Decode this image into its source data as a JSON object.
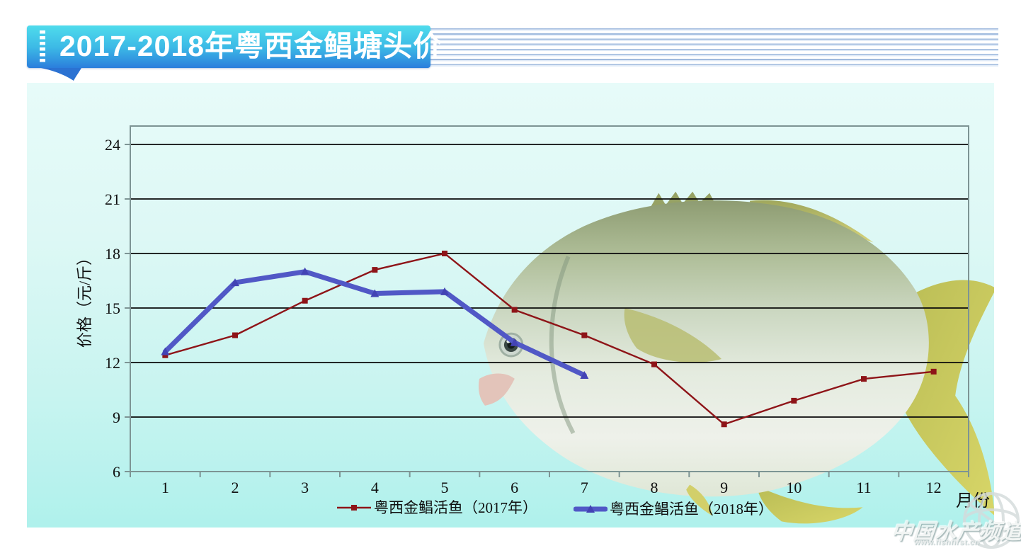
{
  "header": {
    "title": "2017-2018年粤西金鲳塘头价"
  },
  "decor": {
    "fish_icon": "golden-pomfret-fish"
  },
  "watermark": {
    "name": "中国水产频道",
    "url": "www.fishfirst.cn",
    "globe_icon": "globe-icon"
  },
  "colors": {
    "banner_top": "#4fdcec",
    "banner_bottom": "#2b7edc",
    "panel_top": "#e7fbf9",
    "panel_bottom": "#aff1ec",
    "series_2017": "#8e1418",
    "series_2018": "#5158c6",
    "gridline": "#0a0a0a",
    "plot_border": "#7d9494"
  },
  "chart_data": {
    "type": "line",
    "title": "2017-2018年粤西金鲳塘头价",
    "xlabel": "月份",
    "ylabel": "价格（元/斤）",
    "x": [
      1,
      2,
      3,
      4,
      5,
      6,
      7,
      8,
      9,
      10,
      11,
      12
    ],
    "yticks": [
      6,
      9,
      12,
      15,
      18,
      21,
      24
    ],
    "ylim": [
      6,
      24
    ],
    "grid": true,
    "legend_position": "bottom",
    "series": [
      {
        "name": "粤西金鲳活鱼（2017年）",
        "color": "#8e1418",
        "marker": "square",
        "line_width": 2.4,
        "values": [
          12.4,
          13.5,
          15.4,
          17.1,
          18,
          14.9,
          13.5,
          11.9,
          8.6,
          9.9,
          11.1,
          11.5
        ]
      },
      {
        "name": "粤西金鲳活鱼（2018年）",
        "color": "#5158c6",
        "marker": "triangle",
        "line_width": 7,
        "values": [
          12.6,
          16.4,
          17,
          15.8,
          15.9,
          13.1,
          11.3
        ]
      }
    ]
  }
}
